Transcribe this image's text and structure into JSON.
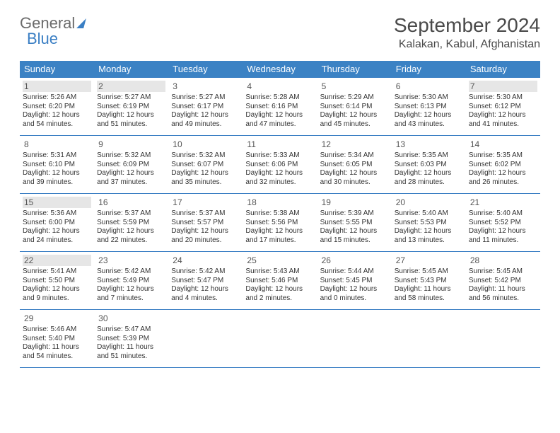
{
  "logo": {
    "part1": "General",
    "part2": "Blue"
  },
  "title": "September 2024",
  "location": "Kalakan, Kabul, Afghanistan",
  "colors": {
    "header_bg": "#3b82c4",
    "border": "#3b7fc4",
    "shade": "#e6e6e6",
    "text": "#333333",
    "title_text": "#4a4a4a"
  },
  "columns": [
    "Sunday",
    "Monday",
    "Tuesday",
    "Wednesday",
    "Thursday",
    "Friday",
    "Saturday"
  ],
  "weeks": [
    [
      {
        "n": "1",
        "shade": true,
        "sr": "5:26 AM",
        "ss": "6:20 PM",
        "dl": "12 hours and 54 minutes."
      },
      {
        "n": "2",
        "shade": true,
        "sr": "5:27 AM",
        "ss": "6:19 PM",
        "dl": "12 hours and 51 minutes."
      },
      {
        "n": "3",
        "shade": false,
        "sr": "5:27 AM",
        "ss": "6:17 PM",
        "dl": "12 hours and 49 minutes."
      },
      {
        "n": "4",
        "shade": false,
        "sr": "5:28 AM",
        "ss": "6:16 PM",
        "dl": "12 hours and 47 minutes."
      },
      {
        "n": "5",
        "shade": false,
        "sr": "5:29 AM",
        "ss": "6:14 PM",
        "dl": "12 hours and 45 minutes."
      },
      {
        "n": "6",
        "shade": false,
        "sr": "5:30 AM",
        "ss": "6:13 PM",
        "dl": "12 hours and 43 minutes."
      },
      {
        "n": "7",
        "shade": true,
        "sr": "5:30 AM",
        "ss": "6:12 PM",
        "dl": "12 hours and 41 minutes."
      }
    ],
    [
      {
        "n": "8",
        "shade": false,
        "sr": "5:31 AM",
        "ss": "6:10 PM",
        "dl": "12 hours and 39 minutes."
      },
      {
        "n": "9",
        "shade": false,
        "sr": "5:32 AM",
        "ss": "6:09 PM",
        "dl": "12 hours and 37 minutes."
      },
      {
        "n": "10",
        "shade": false,
        "sr": "5:32 AM",
        "ss": "6:07 PM",
        "dl": "12 hours and 35 minutes."
      },
      {
        "n": "11",
        "shade": false,
        "sr": "5:33 AM",
        "ss": "6:06 PM",
        "dl": "12 hours and 32 minutes."
      },
      {
        "n": "12",
        "shade": false,
        "sr": "5:34 AM",
        "ss": "6:05 PM",
        "dl": "12 hours and 30 minutes."
      },
      {
        "n": "13",
        "shade": false,
        "sr": "5:35 AM",
        "ss": "6:03 PM",
        "dl": "12 hours and 28 minutes."
      },
      {
        "n": "14",
        "shade": false,
        "sr": "5:35 AM",
        "ss": "6:02 PM",
        "dl": "12 hours and 26 minutes."
      }
    ],
    [
      {
        "n": "15",
        "shade": true,
        "sr": "5:36 AM",
        "ss": "6:00 PM",
        "dl": "12 hours and 24 minutes."
      },
      {
        "n": "16",
        "shade": false,
        "sr": "5:37 AM",
        "ss": "5:59 PM",
        "dl": "12 hours and 22 minutes."
      },
      {
        "n": "17",
        "shade": false,
        "sr": "5:37 AM",
        "ss": "5:57 PM",
        "dl": "12 hours and 20 minutes."
      },
      {
        "n": "18",
        "shade": false,
        "sr": "5:38 AM",
        "ss": "5:56 PM",
        "dl": "12 hours and 17 minutes."
      },
      {
        "n": "19",
        "shade": false,
        "sr": "5:39 AM",
        "ss": "5:55 PM",
        "dl": "12 hours and 15 minutes."
      },
      {
        "n": "20",
        "shade": false,
        "sr": "5:40 AM",
        "ss": "5:53 PM",
        "dl": "12 hours and 13 minutes."
      },
      {
        "n": "21",
        "shade": false,
        "sr": "5:40 AM",
        "ss": "5:52 PM",
        "dl": "12 hours and 11 minutes."
      }
    ],
    [
      {
        "n": "22",
        "shade": true,
        "sr": "5:41 AM",
        "ss": "5:50 PM",
        "dl": "12 hours and 9 minutes."
      },
      {
        "n": "23",
        "shade": false,
        "sr": "5:42 AM",
        "ss": "5:49 PM",
        "dl": "12 hours and 7 minutes."
      },
      {
        "n": "24",
        "shade": false,
        "sr": "5:42 AM",
        "ss": "5:47 PM",
        "dl": "12 hours and 4 minutes."
      },
      {
        "n": "25",
        "shade": false,
        "sr": "5:43 AM",
        "ss": "5:46 PM",
        "dl": "12 hours and 2 minutes."
      },
      {
        "n": "26",
        "shade": false,
        "sr": "5:44 AM",
        "ss": "5:45 PM",
        "dl": "12 hours and 0 minutes."
      },
      {
        "n": "27",
        "shade": false,
        "sr": "5:45 AM",
        "ss": "5:43 PM",
        "dl": "11 hours and 58 minutes."
      },
      {
        "n": "28",
        "shade": false,
        "sr": "5:45 AM",
        "ss": "5:42 PM",
        "dl": "11 hours and 56 minutes."
      }
    ],
    [
      {
        "n": "29",
        "shade": false,
        "sr": "5:46 AM",
        "ss": "5:40 PM",
        "dl": "11 hours and 54 minutes."
      },
      {
        "n": "30",
        "shade": false,
        "sr": "5:47 AM",
        "ss": "5:39 PM",
        "dl": "11 hours and 51 minutes."
      },
      null,
      null,
      null,
      null,
      null
    ]
  ],
  "labels": {
    "sunrise": "Sunrise:",
    "sunset": "Sunset:",
    "daylight": "Daylight:"
  }
}
